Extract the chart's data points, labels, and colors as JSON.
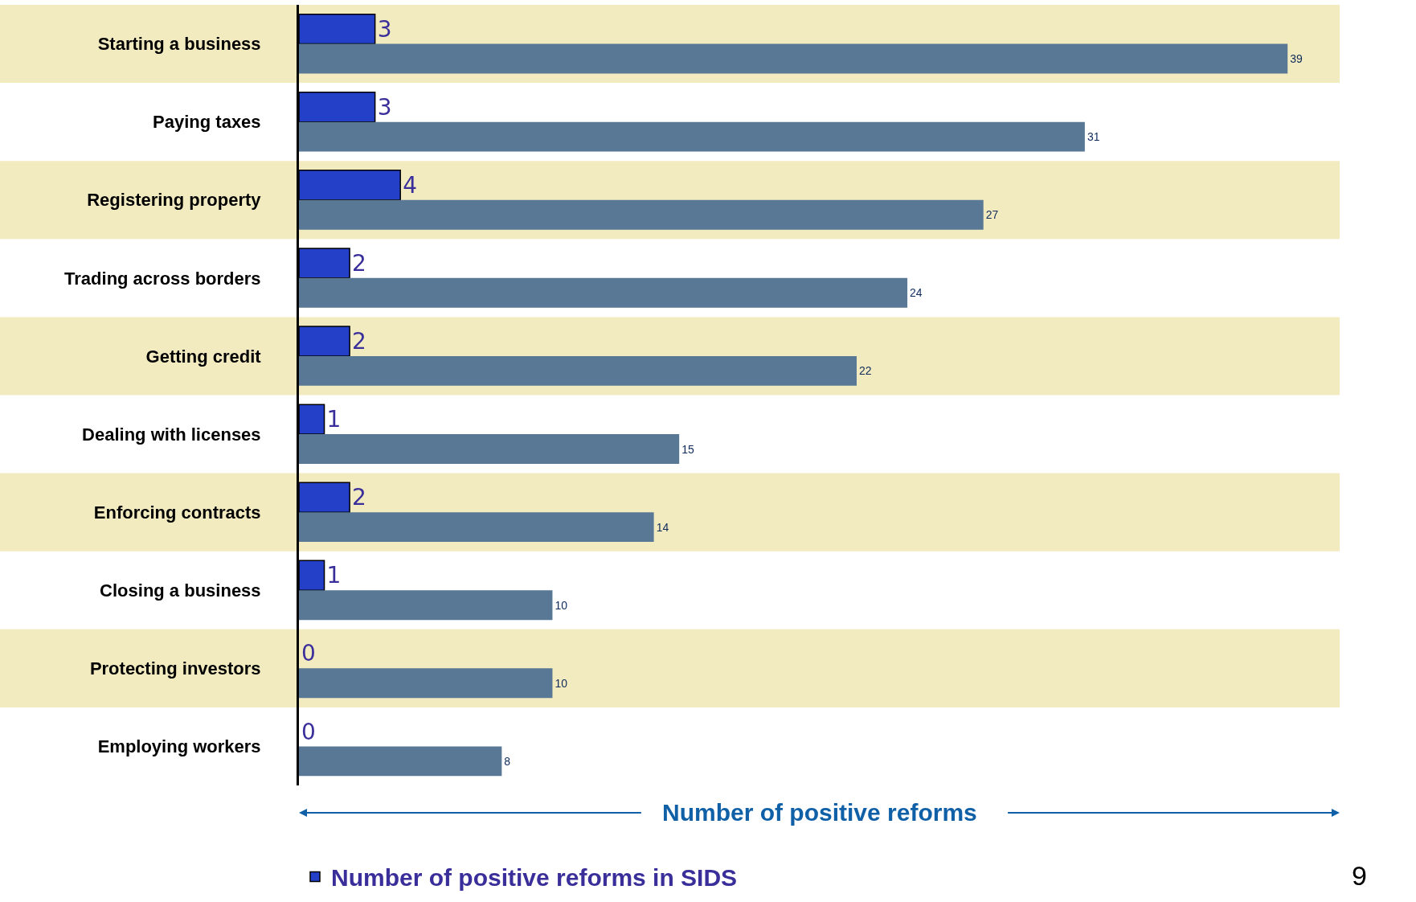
{
  "chart_data": {
    "type": "bar",
    "orientation": "horizontal",
    "xlabel": "Number of positive reforms",
    "categories": [
      "Starting a business",
      "Paying taxes",
      "Registering property",
      "Trading across borders",
      "Getting credit",
      "Dealing with licenses",
      "Enforcing contracts",
      "Closing a business",
      "Protecting investors",
      "Employing workers"
    ],
    "series": [
      {
        "name": "Number of positive reforms in SIDS",
        "color": "#2440c8",
        "values": [
          3,
          3,
          4,
          2,
          2,
          1,
          2,
          1,
          0,
          0
        ]
      },
      {
        "color": "#587896",
        "values": [
          39,
          31,
          27,
          24,
          22,
          15,
          14,
          10,
          10,
          8
        ]
      }
    ],
    "data_labels": true,
    "tick_labels": "y",
    "grid": false,
    "legend": "bottom left",
    "bands": [
      {
        "axis": "y",
        "from": "Starting a business",
        "to": "Starting a business",
        "color": "#f3ebc0"
      },
      {
        "axis": "y",
        "from": "Registering property",
        "to": "Registering property",
        "color": "#f3ebc0"
      },
      {
        "axis": "y",
        "from": "Getting credit",
        "to": "Getting credit",
        "color": "#f3ebc0"
      },
      {
        "axis": "y",
        "from": "Enforcing contracts",
        "to": "Enforcing contracts",
        "color": "#f3ebc0"
      },
      {
        "axis": "y",
        "from": "Protecting investors",
        "to": "Protecting investors",
        "color": "#f3ebc0"
      }
    ],
    "annotations": [
      "9"
    ]
  }
}
